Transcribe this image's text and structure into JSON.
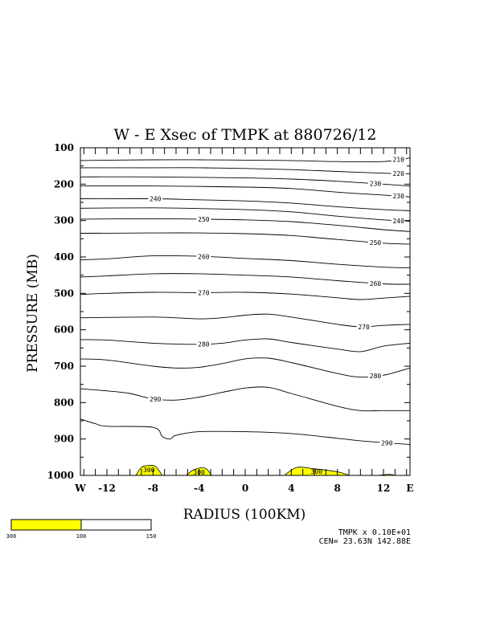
{
  "chart_data": {
    "type": "contour",
    "title": "W - E Xsec of TMPK at 880726/12",
    "xlabel": "RADIUS (100KM)",
    "ylabel": "PRESSURE (MB)",
    "x_ticks": [
      "W",
      "-12",
      "-8",
      "-4",
      "0",
      "4",
      "8",
      "12",
      "E"
    ],
    "y_ticks": [
      "100",
      "200",
      "300",
      "400",
      "500",
      "600",
      "700",
      "800",
      "900",
      "1000"
    ],
    "xlim": [
      -14.3,
      14.3
    ],
    "ylim": [
      1000,
      100
    ],
    "contour_interval": 10,
    "contours": [
      {
        "level": 210,
        "label": "210",
        "points": [
          [
            -14.3,
            135
          ],
          [
            -8,
            133
          ],
          [
            -4,
            133
          ],
          [
            0,
            134
          ],
          [
            4,
            135
          ],
          [
            8,
            138
          ],
          [
            12,
            138
          ],
          [
            14.3,
            128
          ]
        ]
      },
      {
        "level": 220,
        "label": "220",
        "points": [
          [
            -14.3,
            155
          ],
          [
            -8,
            155
          ],
          [
            -4,
            155
          ],
          [
            0,
            157
          ],
          [
            4,
            160
          ],
          [
            8,
            165
          ],
          [
            12,
            170
          ],
          [
            14.3,
            172
          ]
        ]
      },
      {
        "level": 230,
        "label": "230",
        "points": [
          [
            -14.3,
            180
          ],
          [
            -8,
            180
          ],
          [
            0,
            183
          ],
          [
            4,
            186
          ],
          [
            8,
            192
          ],
          [
            12,
            200
          ],
          [
            14.3,
            205
          ]
        ]
      },
      {
        "level": 230,
        "label": "230",
        "points": [
          [
            -14.3,
            205
          ],
          [
            -8,
            205
          ],
          [
            0,
            208
          ],
          [
            4,
            212
          ],
          [
            8,
            222
          ],
          [
            12,
            230
          ],
          [
            14.3,
            235
          ]
        ]
      },
      {
        "level": 240,
        "label": "240",
        "points": [
          [
            -14.3,
            240
          ],
          [
            -8,
            240
          ],
          [
            -4,
            243
          ],
          [
            0,
            246
          ],
          [
            4,
            252
          ],
          [
            8,
            262
          ],
          [
            12,
            270
          ],
          [
            14.3,
            273
          ]
        ]
      },
      {
        "level": 240,
        "label": "240",
        "points": [
          [
            -14.3,
            266
          ],
          [
            -8,
            265
          ],
          [
            -4,
            267
          ],
          [
            0,
            270
          ],
          [
            4,
            276
          ],
          [
            8,
            288
          ],
          [
            12,
            298
          ],
          [
            14.3,
            302
          ]
        ]
      },
      {
        "level": 250,
        "label": "250",
        "points": [
          [
            -14.3,
            296
          ],
          [
            -8,
            295
          ],
          [
            -4,
            296
          ],
          [
            0,
            298
          ],
          [
            4,
            303
          ],
          [
            8,
            313
          ],
          [
            12,
            325
          ],
          [
            14.3,
            330
          ]
        ]
      },
      {
        "level": 250,
        "label": "250",
        "points": [
          [
            -14.3,
            335
          ],
          [
            -8,
            334
          ],
          [
            -4,
            334
          ],
          [
            0,
            336
          ],
          [
            4,
            341
          ],
          [
            8,
            352
          ],
          [
            12,
            362
          ],
          [
            14.3,
            365
          ]
        ]
      },
      {
        "level": 260,
        "label": "260",
        "points": [
          [
            -14.3,
            408
          ],
          [
            -12,
            405
          ],
          [
            -8,
            397
          ],
          [
            -4,
            398
          ],
          [
            0,
            404
          ],
          [
            4,
            410
          ],
          [
            8,
            420
          ],
          [
            12,
            428
          ],
          [
            14.3,
            430
          ]
        ]
      },
      {
        "level": 260,
        "label": "260",
        "points": [
          [
            -14.3,
            455
          ],
          [
            -12,
            452
          ],
          [
            -8,
            446
          ],
          [
            -4,
            446
          ],
          [
            0,
            450
          ],
          [
            4,
            455
          ],
          [
            8,
            465
          ],
          [
            12,
            474
          ],
          [
            14.3,
            475
          ]
        ]
      },
      {
        "level": 270,
        "label": "270",
        "points": [
          [
            -14.3,
            503
          ],
          [
            -12,
            500
          ],
          [
            -8,
            497
          ],
          [
            -4,
            498
          ],
          [
            0,
            497
          ],
          [
            4,
            502
          ],
          [
            8,
            512
          ],
          [
            10,
            517
          ],
          [
            12,
            513
          ],
          [
            14.3,
            508
          ]
        ]
      },
      {
        "level": 270,
        "label": "270",
        "points": [
          [
            -14.3,
            567
          ],
          [
            -8,
            565
          ],
          [
            -4,
            570
          ],
          [
            -2,
            567
          ],
          [
            0,
            560
          ],
          [
            2,
            557
          ],
          [
            4,
            565
          ],
          [
            8,
            585
          ],
          [
            10,
            592
          ],
          [
            12,
            588
          ],
          [
            14.3,
            585
          ]
        ]
      },
      {
        "level": 280,
        "label": "280",
        "points": [
          [
            -14.3,
            627
          ],
          [
            -12,
            628
          ],
          [
            -8,
            637
          ],
          [
            -4,
            640
          ],
          [
            -2,
            637
          ],
          [
            0,
            628
          ],
          [
            2,
            625
          ],
          [
            4,
            635
          ],
          [
            8,
            653
          ],
          [
            10,
            660
          ],
          [
            12,
            645
          ],
          [
            14.3,
            637
          ]
        ]
      },
      {
        "level": 280,
        "label": "280",
        "points": [
          [
            -14.3,
            680
          ],
          [
            -12,
            683
          ],
          [
            -8,
            700
          ],
          [
            -6,
            705
          ],
          [
            -4,
            703
          ],
          [
            -2,
            693
          ],
          [
            0,
            680
          ],
          [
            2,
            678
          ],
          [
            4,
            690
          ],
          [
            8,
            720
          ],
          [
            10,
            730
          ],
          [
            12,
            725
          ],
          [
            14.3,
            705
          ]
        ]
      },
      {
        "level": 290,
        "label": "290",
        "points": [
          [
            -14.3,
            762
          ],
          [
            -12,
            768
          ],
          [
            -10,
            775
          ],
          [
            -8,
            790
          ],
          [
            -6,
            793
          ],
          [
            -4,
            785
          ],
          [
            -2,
            772
          ],
          [
            0,
            760
          ],
          [
            2,
            758
          ],
          [
            4,
            775
          ],
          [
            8,
            810
          ],
          [
            10,
            822
          ],
          [
            12,
            822
          ],
          [
            14.3,
            822
          ]
        ]
      },
      {
        "level": 290,
        "label": "290",
        "points": [
          [
            -14.3,
            845
          ],
          [
            -13,
            858
          ],
          [
            -12,
            865
          ],
          [
            -8,
            868
          ],
          [
            -7.2,
            893
          ],
          [
            -6.5,
            900
          ],
          [
            -6,
            890
          ],
          [
            -4,
            880
          ],
          [
            0,
            880
          ],
          [
            4,
            885
          ],
          [
            8,
            898
          ],
          [
            10,
            905
          ],
          [
            12,
            910
          ],
          [
            14.3,
            915
          ]
        ]
      }
    ],
    "shaded_regions": [
      {
        "level": 300,
        "label": "300",
        "points": [
          [
            -9.5,
            1000
          ],
          [
            -9.0,
            978
          ],
          [
            -8.5,
            973
          ],
          [
            -7.8,
            975
          ],
          [
            -7.2,
            1000
          ]
        ]
      },
      {
        "level": 300,
        "label": "300",
        "points": [
          [
            -5.1,
            1000
          ],
          [
            -4.5,
            985
          ],
          [
            -3.5,
            980
          ],
          [
            -2.9,
            1000
          ]
        ]
      },
      {
        "level": 300,
        "label": "300",
        "points": [
          [
            3.4,
            1000
          ],
          [
            4.5,
            978
          ],
          [
            6.0,
            982
          ],
          [
            8.0,
            990
          ],
          [
            9.0,
            1000
          ]
        ]
      },
      {
        "level": 300,
        "label": "",
        "points": [
          [
            11.5,
            1000
          ],
          [
            12.5,
            997
          ],
          [
            13.0,
            1000
          ]
        ]
      }
    ],
    "colorbar": {
      "ticks": [
        "300",
        "100",
        "150"
      ],
      "colors": [
        "#ffff00",
        "#ffffff"
      ]
    },
    "footer": {
      "line1": "TMPK x  0.10E+01",
      "line2": "CEN= 23.63N  142.88E"
    }
  }
}
